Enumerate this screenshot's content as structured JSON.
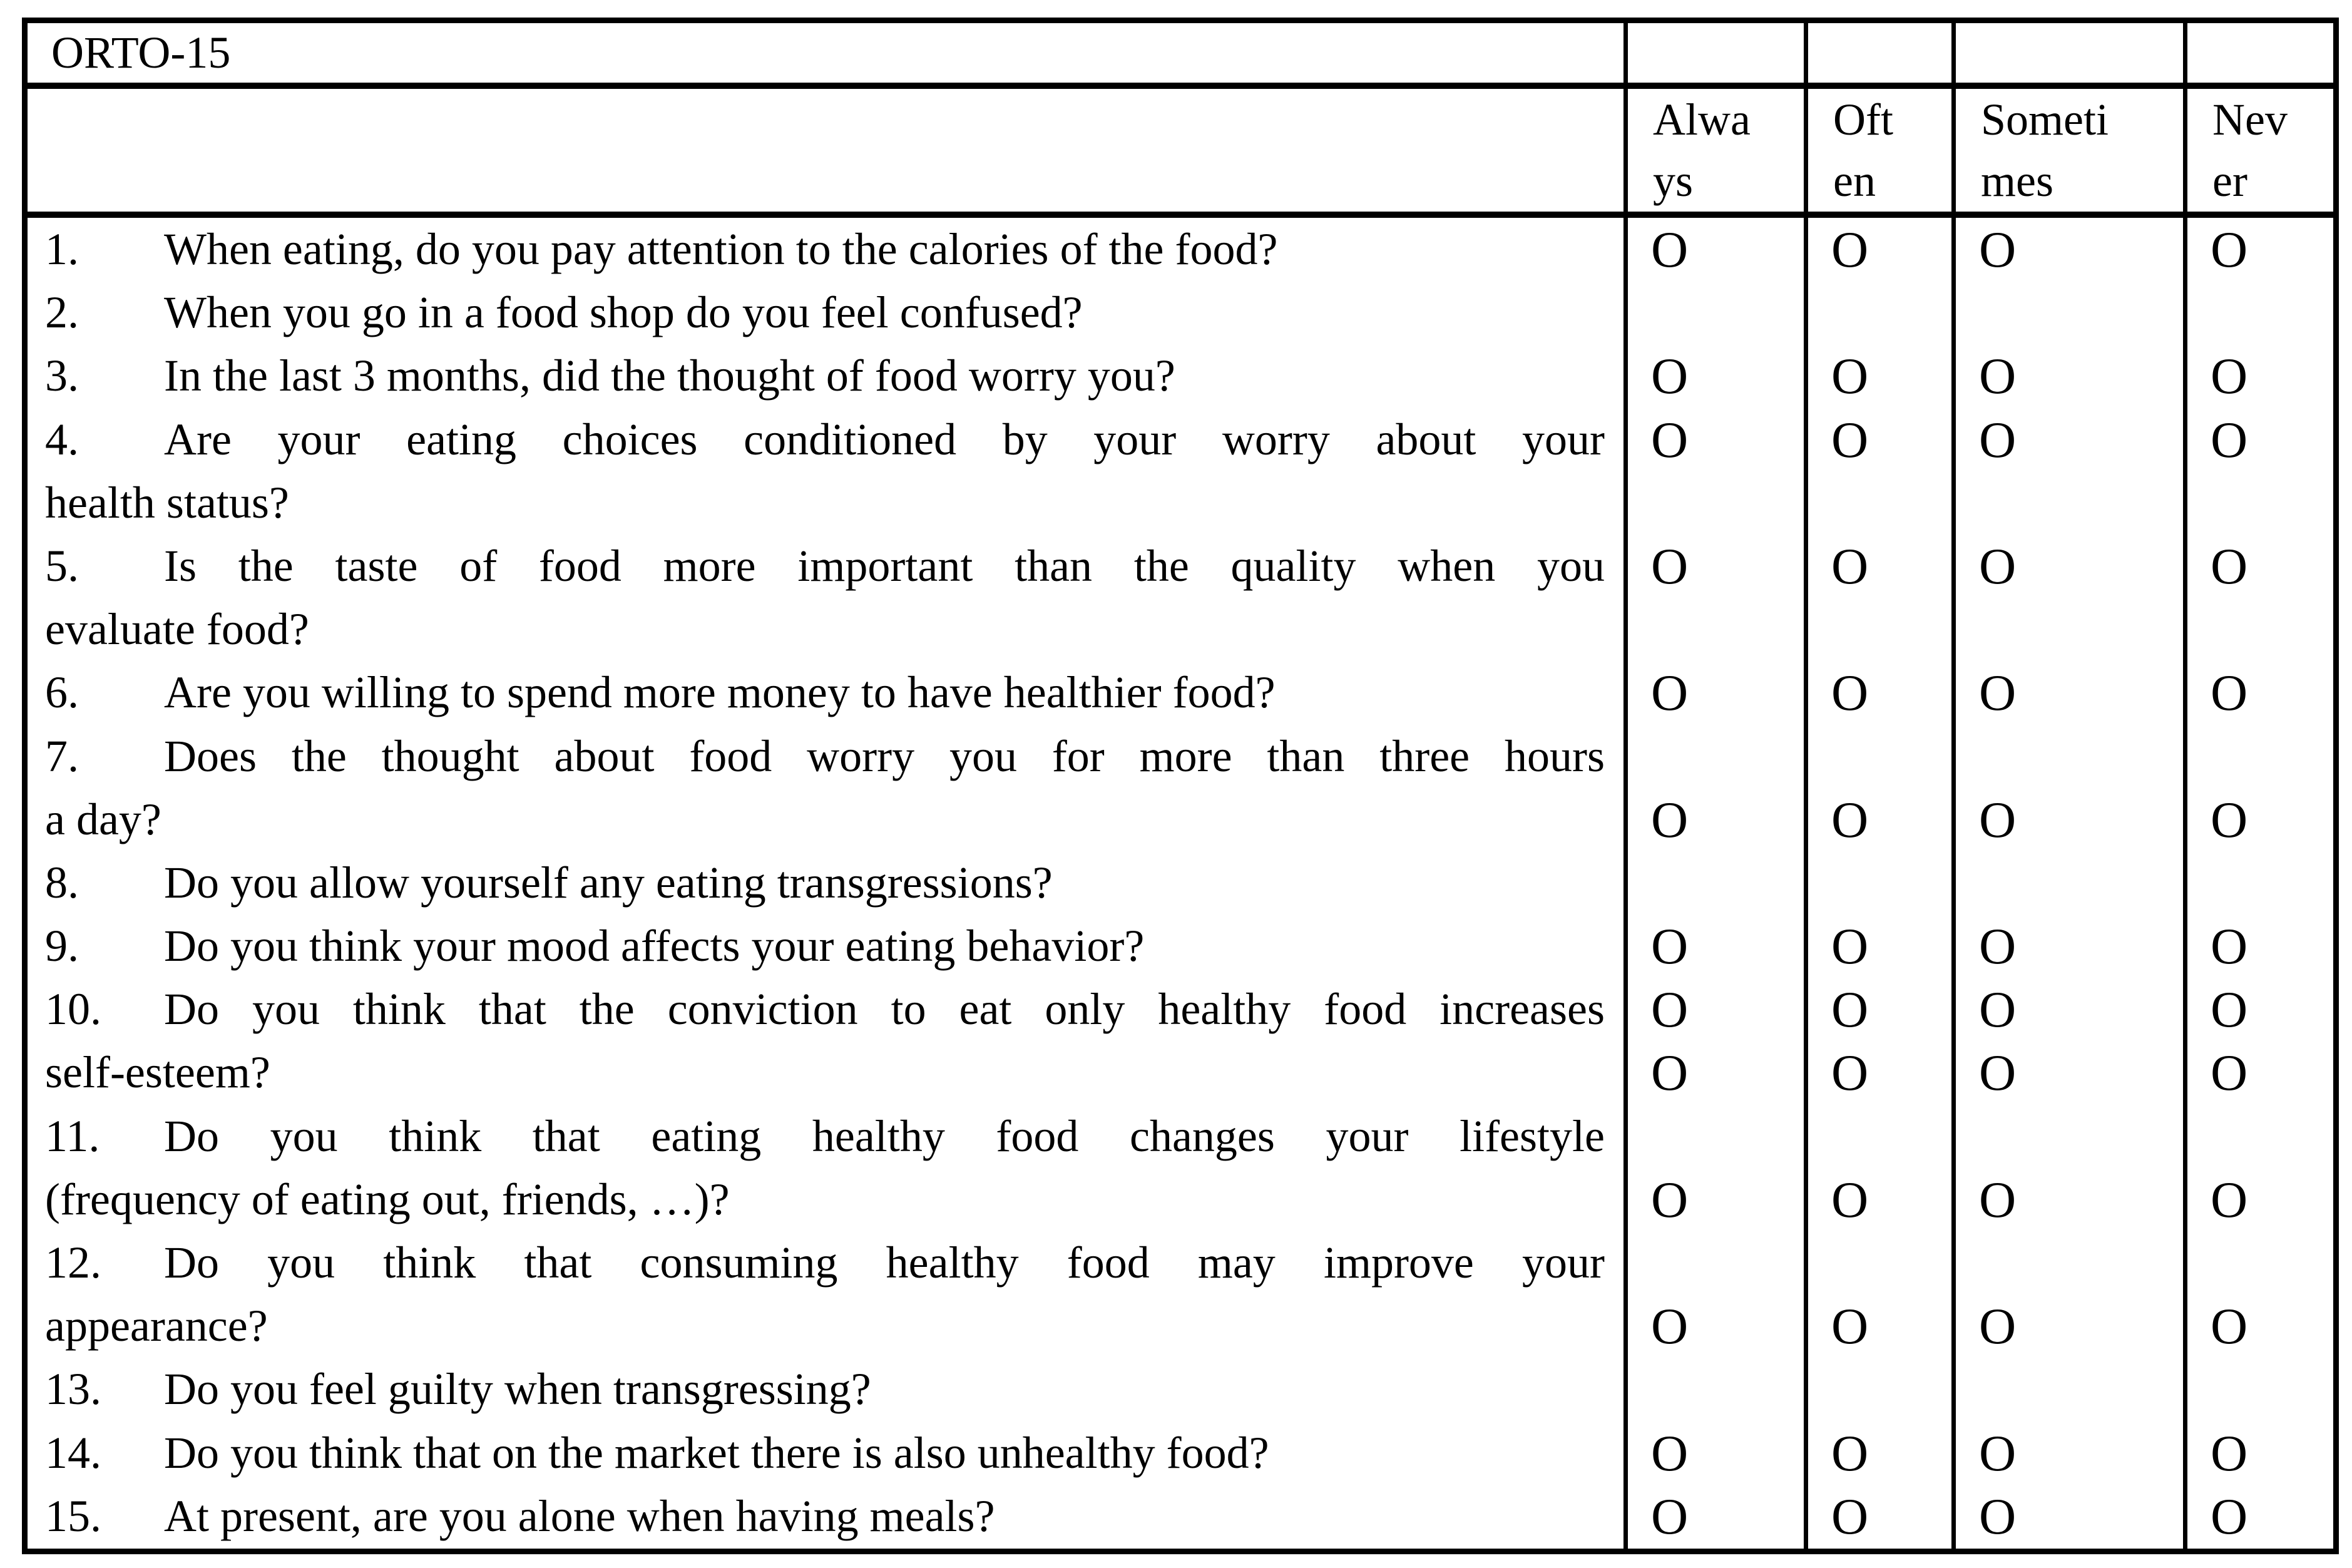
{
  "colors": {
    "background": "#ffffff",
    "text": "#000000",
    "border": "#000000"
  },
  "table": {
    "title": "ORTO-15",
    "mark_symbol": "O",
    "columns": [
      {
        "id": "always",
        "label": "Always",
        "lines": [
          "Alwa",
          "ys"
        ]
      },
      {
        "id": "often",
        "label": "Often",
        "lines": [
          "Oft",
          "en"
        ]
      },
      {
        "id": "sometimes",
        "label": "Sometimes",
        "lines": [
          "Someti",
          "mes"
        ]
      },
      {
        "id": "never",
        "label": "Never",
        "lines": [
          "Nev",
          "er"
        ]
      }
    ],
    "lines": [
      {
        "num": "1.",
        "text": "When eating, do you pay attention to the calories of the food?",
        "justified": false,
        "has_options": true
      },
      {
        "num": "2.",
        "text": "When you go in a food shop do you feel confused?",
        "justified": false,
        "has_options": false
      },
      {
        "num": "3.",
        "text": "In the last 3 months, did the thought of food worry you?",
        "justified": false,
        "has_options": true
      },
      {
        "num": "4.",
        "text": "Are your eating choices conditioned by your worry about your",
        "justified": true,
        "has_options": true
      },
      {
        "num": "",
        "text": "health status?",
        "justified": false,
        "has_options": false
      },
      {
        "num": "5.",
        "text": "Is the taste of food more important than the quality when you",
        "justified": true,
        "has_options": true
      },
      {
        "num": "",
        "text": "evaluate food?",
        "justified": false,
        "has_options": false
      },
      {
        "num": "6.",
        "text": "Are you willing to spend more money to have healthier food?",
        "justified": false,
        "has_options": true
      },
      {
        "num": "7.",
        "text": "Does the thought about food worry you for more than three hours",
        "justified": true,
        "has_options": false
      },
      {
        "num": "",
        "text": "a day?",
        "justified": false,
        "has_options": true
      },
      {
        "num": "8.",
        "text": "Do you allow yourself any eating transgressions?",
        "justified": false,
        "has_options": false
      },
      {
        "num": "9.",
        "text": "Do you think your mood affects your eating behavior?",
        "justified": false,
        "has_options": true
      },
      {
        "num": "10.",
        "text": "Do you think that the conviction to eat only healthy food increases",
        "justified": true,
        "has_options": true
      },
      {
        "num": "",
        "text": "self-esteem?",
        "justified": false,
        "has_options": true
      },
      {
        "num": "11.",
        "text": "Do you think that eating healthy food changes your lifestyle",
        "justified": true,
        "has_options": false
      },
      {
        "num": "",
        "text": "(frequency of eating out, friends, …)?",
        "justified": false,
        "has_options": true
      },
      {
        "num": "12.",
        "text": "Do you think that consuming healthy food may improve your",
        "justified": true,
        "has_options": false
      },
      {
        "num": "",
        "text": "appearance?",
        "justified": false,
        "has_options": true
      },
      {
        "num": "13.",
        "text": "Do you feel guilty when transgressing?",
        "justified": false,
        "has_options": false
      },
      {
        "num": "14.",
        "text": "Do you think that on the market there is also unhealthy food?",
        "justified": false,
        "has_options": true
      },
      {
        "num": "15.",
        "text": "At present, are you alone when having meals?",
        "justified": false,
        "has_options": true
      }
    ]
  }
}
